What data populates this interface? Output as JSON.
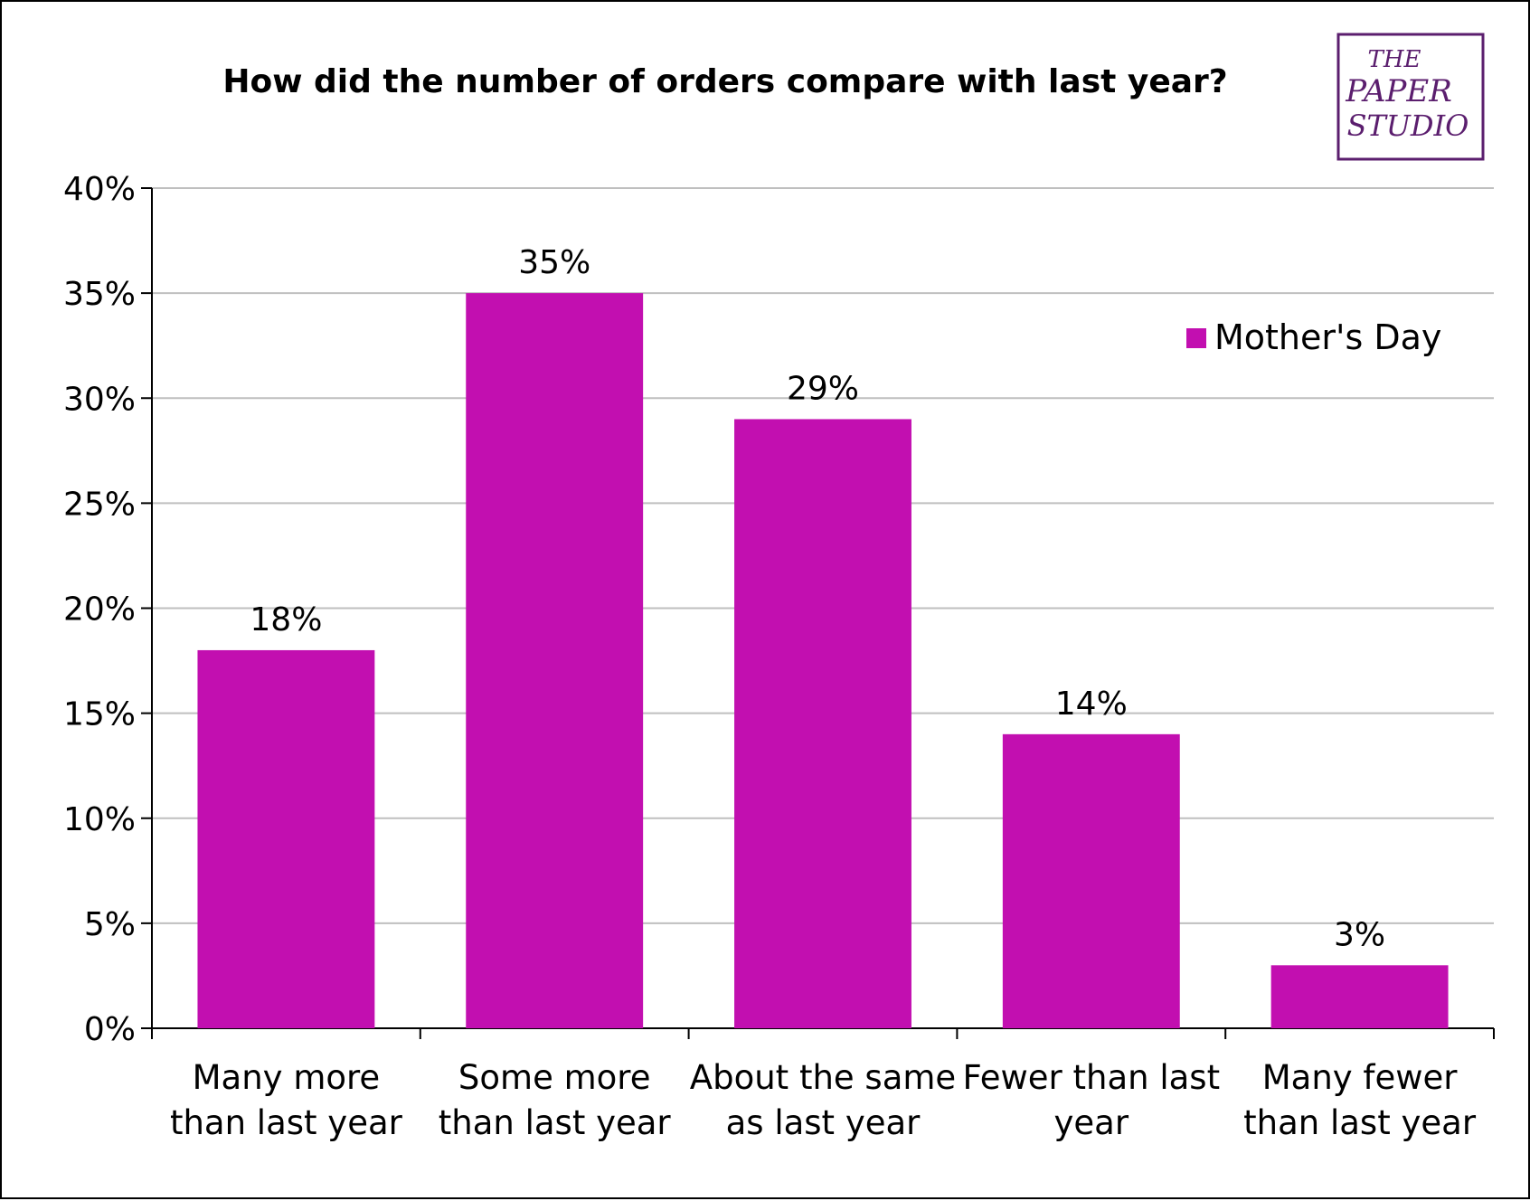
{
  "chart_data": {
    "type": "bar",
    "title": "How did the number  of orders compare  with  last year?",
    "categories": [
      [
        "Many more",
        "than last year"
      ],
      [
        "Some more",
        "than last year"
      ],
      [
        "About the same",
        "as last year"
      ],
      [
        "Fewer than last",
        "year"
      ],
      [
        "Many fewer",
        "than last year"
      ]
    ],
    "series": [
      {
        "name": "Mother's Day",
        "values": [
          18,
          35,
          29,
          14,
          3
        ],
        "color": "#c20fb0"
      }
    ],
    "data_labels": [
      "18%",
      "35%",
      "29%",
      "14%",
      "3%"
    ],
    "ylim": [
      0,
      40
    ],
    "yticks": [
      0,
      5,
      10,
      15,
      20,
      25,
      30,
      35,
      40
    ],
    "ytick_labels": [
      "0%",
      "5%",
      "10%",
      "15%",
      "20%",
      "25%",
      "30%",
      "35%",
      "40%"
    ],
    "grid": true,
    "legend_position": "top-right",
    "xlabel": "",
    "ylabel": ""
  },
  "logo": {
    "lines": [
      "THE",
      "PAPER",
      "STUDIO"
    ],
    "color": "#5b1e6e",
    "icon": "paper-studio-logo"
  }
}
